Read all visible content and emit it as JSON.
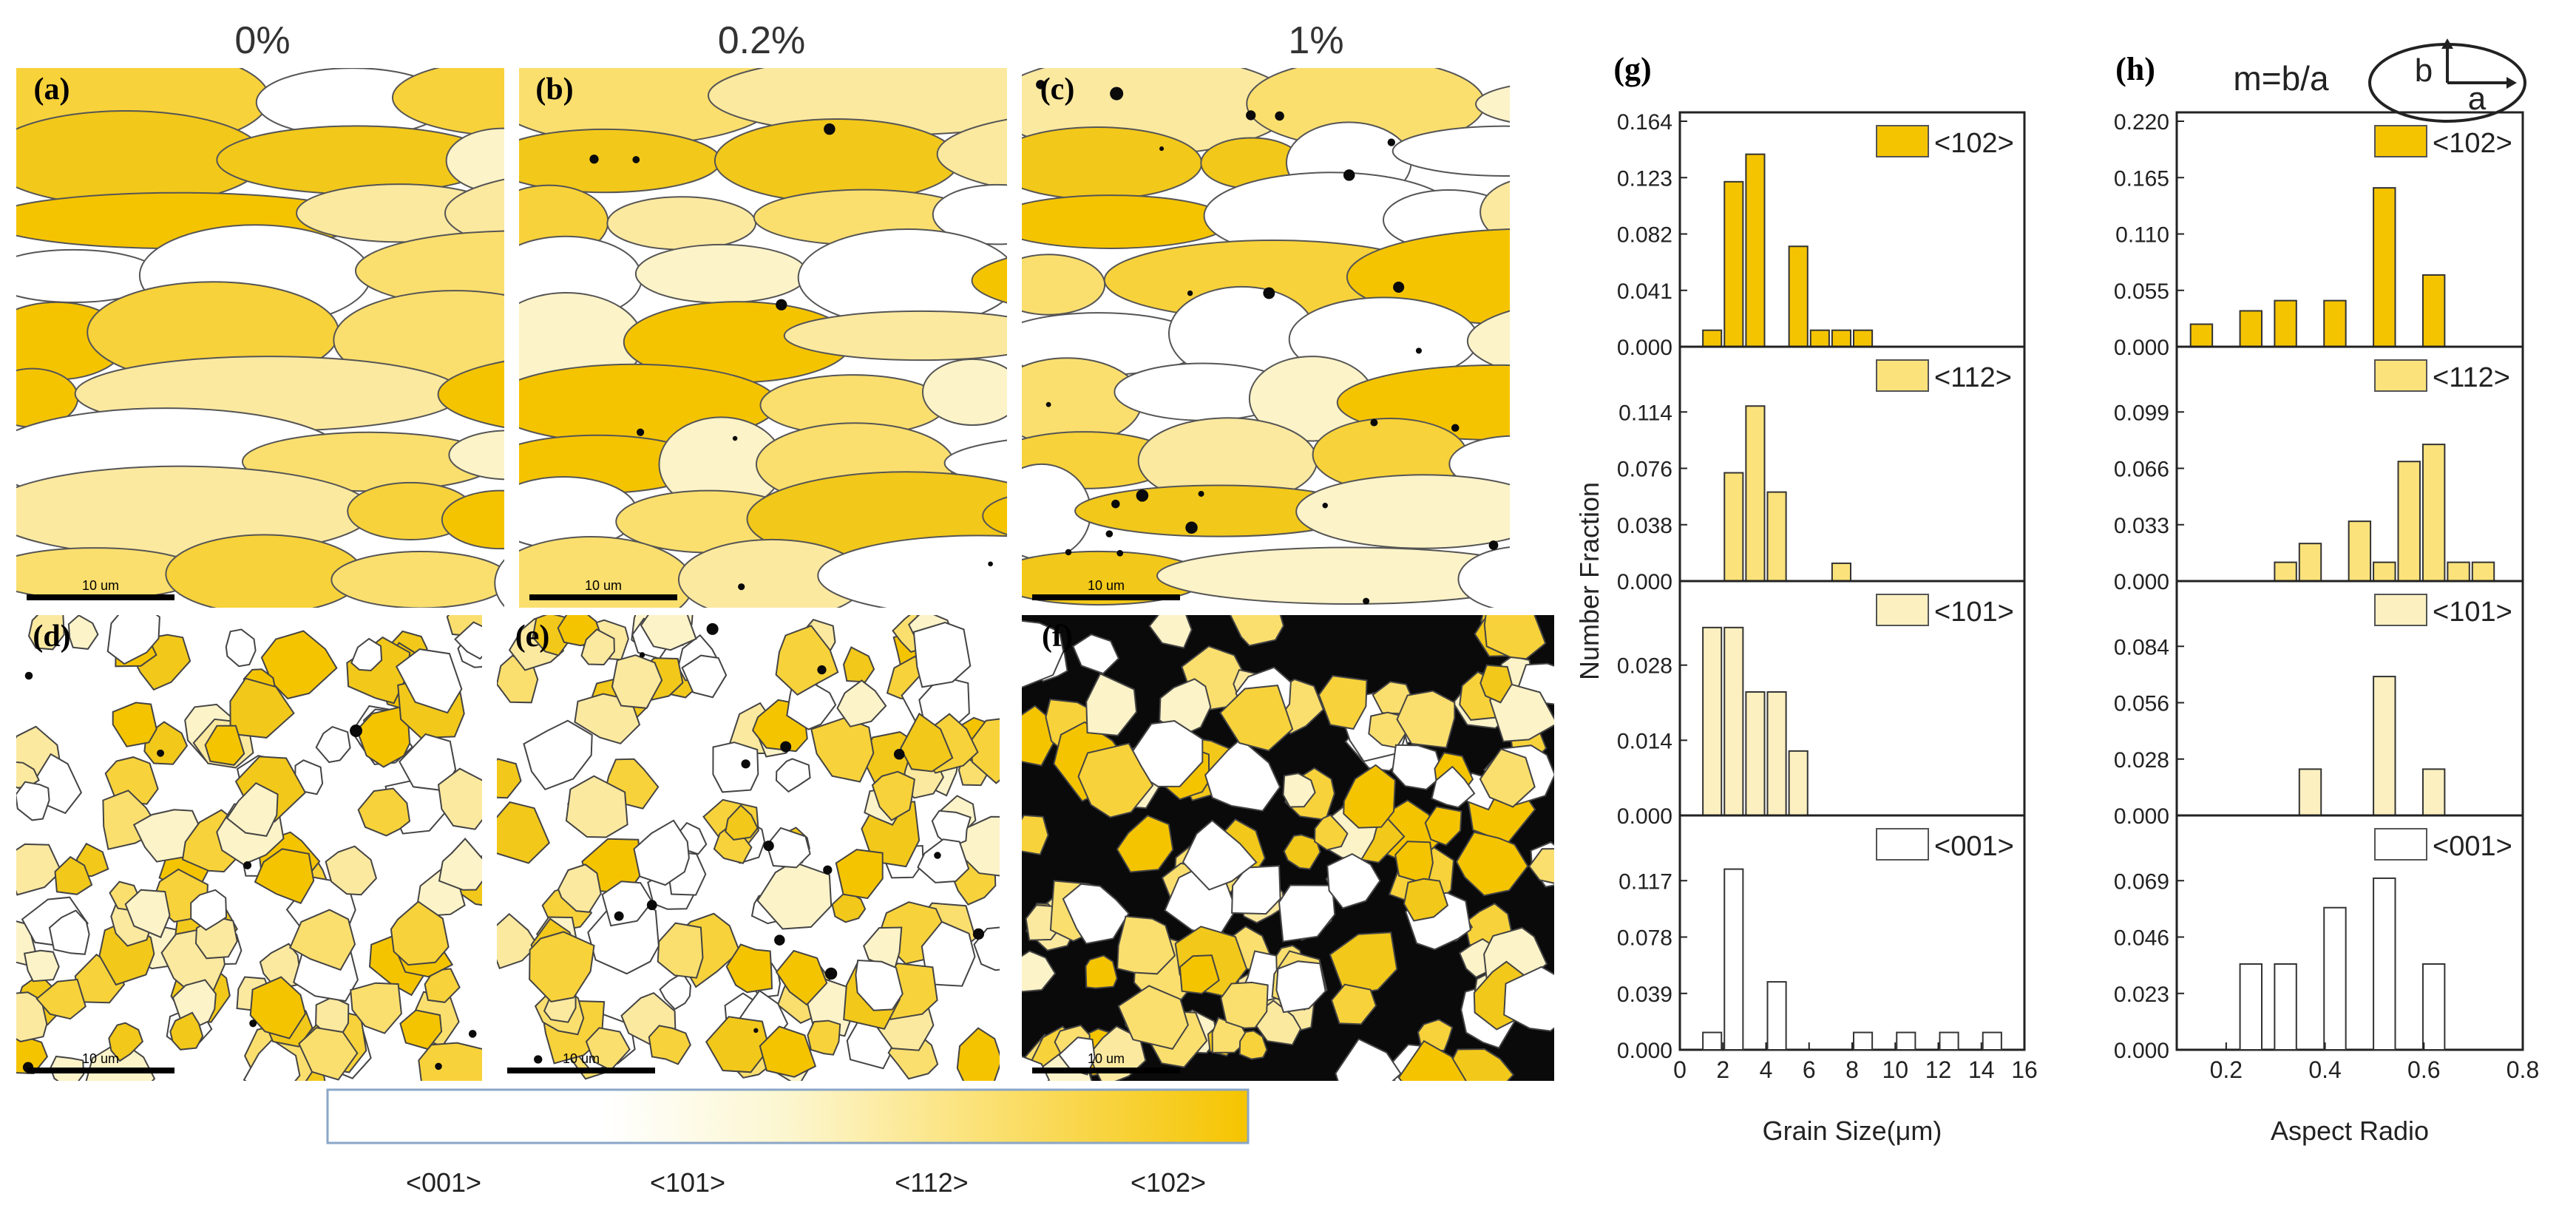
{
  "figure": {
    "strain_headers": [
      "0%",
      "0.2%",
      "1%"
    ],
    "panel_labels": [
      "(a)",
      "(b)",
      "(c)",
      "(d)",
      "(e)",
      "(f)",
      "(g)",
      "(h)"
    ],
    "scale_bar_label": "10 um",
    "colorbar": {
      "labels": [
        "<001>",
        "<101>",
        "<112>",
        "<102>"
      ],
      "colors": [
        "#ffffff",
        "#fcf6cf",
        "#fbe27a",
        "#f5c400"
      ]
    },
    "aspect_formula": "m=b/a",
    "ellipse_labels": {
      "b": "b",
      "a": "a"
    }
  },
  "chart_data": [
    {
      "type": "bar",
      "title": "(g)",
      "xlabel": "Grain Size(μm)",
      "ylabel": "Number Fraction",
      "xlim": [
        0,
        16
      ],
      "xticks": [
        0,
        2,
        4,
        6,
        8,
        10,
        12,
        14,
        16
      ],
      "bar_width": 1,
      "subplots": [
        {
          "legend": "<102>",
          "color": "#f5c400",
          "ylim": [
            0,
            0.164
          ],
          "yticks": [
            "0.000",
            "0.041",
            "0.082",
            "0.123",
            "0.164"
          ],
          "x": [
            1.5,
            2.5,
            3.5,
            5.5,
            6.5,
            7.5,
            8.5
          ],
          "values": [
            0.012,
            0.12,
            0.14,
            0.073,
            0.012,
            0.012,
            0.012
          ]
        },
        {
          "legend": "<112>",
          "color": "#fbe27a",
          "ylim": [
            0,
            0.152
          ],
          "yticks": [
            "0.000",
            "0.038",
            "0.076",
            "0.114"
          ],
          "x": [
            2.5,
            3.5,
            4.5,
            7.5
          ],
          "values": [
            0.073,
            0.118,
            0.06,
            0.012
          ]
        },
        {
          "legend": "<101>",
          "color": "#fcf0c0",
          "ylim": [
            0,
            0.042
          ],
          "yticks": [
            "0.000",
            "0.014",
            "0.028"
          ],
          "x": [
            1.5,
            2.5,
            3.5,
            4.5,
            5.5
          ],
          "values": [
            0.035,
            0.035,
            0.023,
            0.023,
            0.012
          ]
        },
        {
          "legend": "<001>",
          "color": "#ffffff",
          "ylim": [
            0,
            0.156
          ],
          "yticks": [
            "0.000",
            "0.039",
            "0.078",
            "0.117"
          ],
          "x": [
            1.5,
            2.5,
            4.5,
            8.5,
            10.5,
            12.5,
            14.5
          ],
          "values": [
            0.012,
            0.125,
            0.047,
            0.012,
            0.012,
            0.012,
            0.012
          ]
        }
      ]
    },
    {
      "type": "bar",
      "title": "(h)",
      "xlabel": "Aspect Radio",
      "ylabel": "",
      "xlim": [
        0.1,
        0.8
      ],
      "xticks": [
        0.2,
        0.4,
        0.6,
        0.8
      ],
      "bar_width": 0.05,
      "subplots": [
        {
          "legend": "<102>",
          "color": "#f5c400",
          "ylim": [
            0,
            0.22
          ],
          "yticks": [
            "0.000",
            "0.055",
            "0.110",
            "0.165",
            "0.220"
          ],
          "x": [
            0.15,
            0.25,
            0.32,
            0.42,
            0.52,
            0.62
          ],
          "values": [
            0.022,
            0.035,
            0.045,
            0.045,
            0.155,
            0.07
          ]
        },
        {
          "legend": "<112>",
          "color": "#fbe27a",
          "ylim": [
            0,
            0.132
          ],
          "yticks": [
            "0.000",
            "0.033",
            "0.066",
            "0.099"
          ],
          "x": [
            0.32,
            0.37,
            0.47,
            0.52,
            0.57,
            0.62,
            0.67,
            0.72
          ],
          "values": [
            0.011,
            0.022,
            0.035,
            0.011,
            0.07,
            0.08,
            0.011,
            0.011
          ]
        },
        {
          "legend": "<101>",
          "color": "#fcf0c0",
          "ylim": [
            0,
            0.112
          ],
          "yticks": [
            "0.000",
            "0.028",
            "0.056",
            "0.084"
          ],
          "x": [
            0.37,
            0.52,
            0.62
          ],
          "values": [
            0.023,
            0.069,
            0.023
          ]
        },
        {
          "legend": "<001>",
          "color": "#ffffff",
          "ylim": [
            0,
            0.092
          ],
          "yticks": [
            "0.000",
            "0.023",
            "0.046",
            "0.069"
          ],
          "x": [
            0.25,
            0.32,
            0.42,
            0.52,
            0.62
          ],
          "values": [
            0.035,
            0.035,
            0.058,
            0.07,
            0.035
          ]
        }
      ]
    }
  ]
}
